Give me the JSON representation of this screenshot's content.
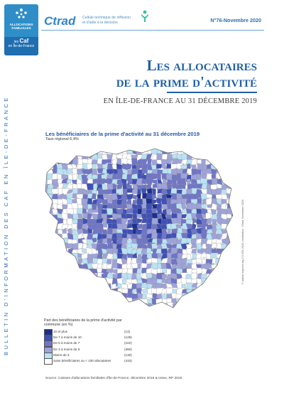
{
  "logo": {
    "line1": "ALLOCATIONS FAMILIALES",
    "line2_pre": "les",
    "line2_brand": "Caf",
    "line2_post": "en Île-de-France"
  },
  "header": {
    "brand": "Ctrad",
    "tagline": "Cellule technique de réflexion et d'aide à la décision",
    "issue": "N°76-Novembre 2020"
  },
  "side_text": "BULLETIN D'INFORMATION DES CAF EN ÎLE-DE-FRANCE",
  "title": {
    "line1": "Les allocataires",
    "line2": "de la prime d'activité",
    "subtitle": "EN ÎLE-DE-FRANCE AU 31 DÉCEMBRE 2019"
  },
  "map": {
    "title": "Les bénéficiaires de la prime d'activité au 31 décembre 2019",
    "regional_rate": "Taux régional 6,4%",
    "credit": "© admin express ing 2.0 IGN 2020, réalisation : Ctrad, Novembre 2020"
  },
  "legend": {
    "title": "Part des bénéficiaires de la prime d'activité par commune (en %)",
    "items": [
      {
        "label": "10 et plus",
        "count": "(14)",
        "color": "#1c2f8f"
      },
      {
        "label": "De 7 à moins de 10",
        "count": "(128)",
        "color": "#3f51b5"
      },
      {
        "label": "De 5 à moins de 7",
        "count": "(222)",
        "color": "#7076c6"
      },
      {
        "label": "De 3 à moins de 5",
        "count": "(360)",
        "color": "#9ea3d9"
      },
      {
        "label": "Moins de 3",
        "count": "(130)",
        "color": "#b9e3f4"
      },
      {
        "label": "Sans bénéficiaires ou < 100 allocataires",
        "count": "(433)",
        "color": "#ffffff"
      }
    ]
  },
  "source": "Source: Caisses d'allocations familiales d'Île-de-France, décembre 2019 & Insee, RP 2016."
}
